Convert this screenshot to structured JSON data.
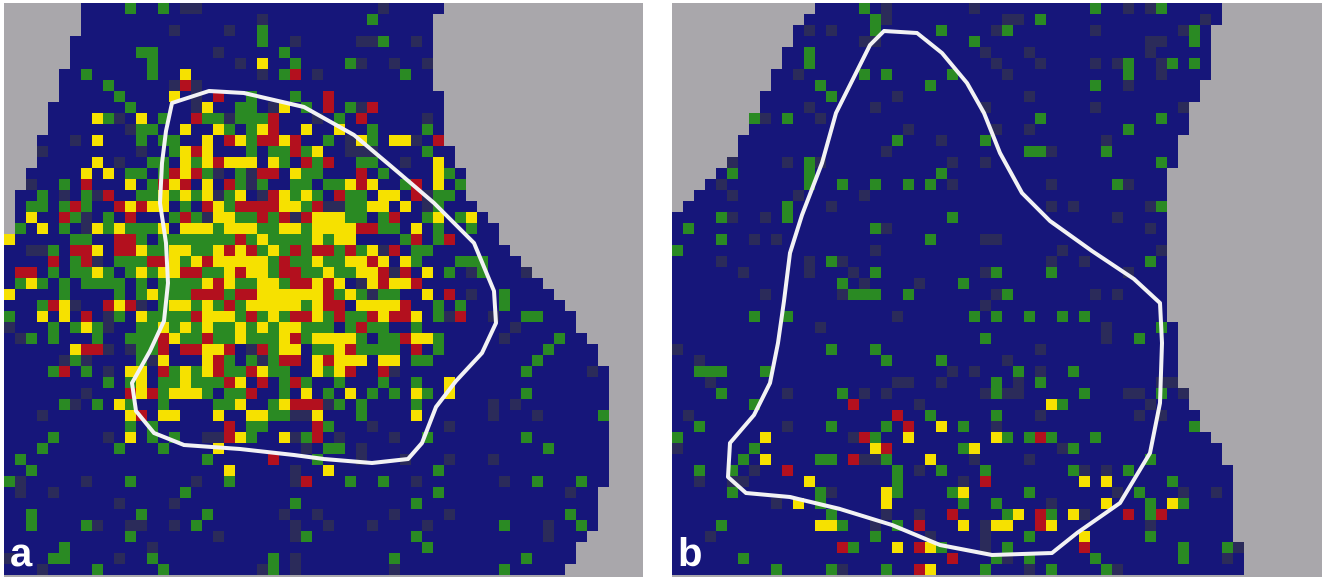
{
  "figure": {
    "panels": [
      {
        "id": "a",
        "label": "a",
        "description_colors": {
          "background": "#a9a7ab",
          "tissue": "#16167a",
          "low": "#2a8a23",
          "mid": "#f6e100",
          "high": "#b3101e",
          "outline": "#f2f2f4"
        }
      },
      {
        "id": "b",
        "label": "b",
        "description_colors": {
          "background": "#a9a7ab",
          "tissue": "#16167a",
          "low": "#2a8a23",
          "mid": "#f6e100",
          "high": "#b3101e",
          "outline": "#f2f2f4"
        }
      }
    ]
  }
}
